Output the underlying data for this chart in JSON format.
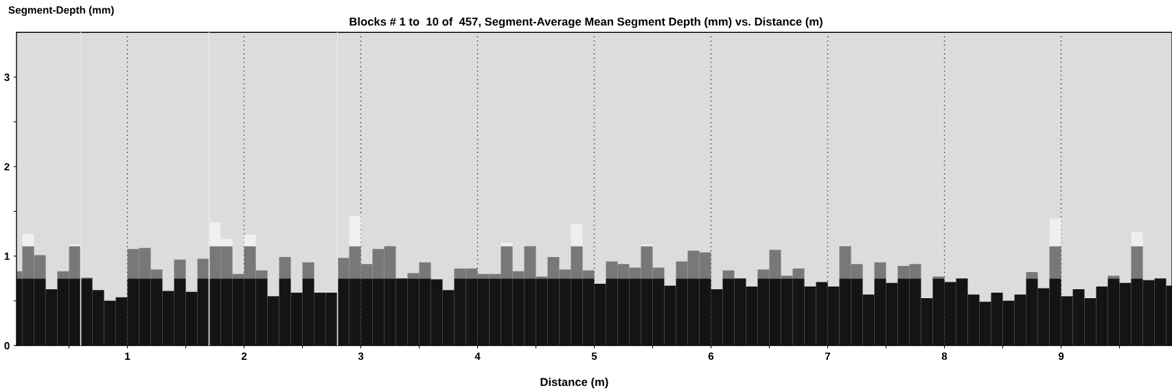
{
  "chart_data": {
    "type": "bar",
    "stacked": true,
    "title": "Blocks # 1 to  10 of  457, Segment-Average Mean Segment Depth (mm) vs. Distance (m)",
    "xlabel": "Distance (m)",
    "ylabel": "Segment-Depth (mm)",
    "x": [
      0.05,
      0.15,
      0.25,
      0.35,
      0.45,
      0.55,
      0.65,
      0.75,
      0.85,
      0.95,
      1.05,
      1.15,
      1.25,
      1.35,
      1.45,
      1.55,
      1.65,
      1.75,
      1.85,
      1.95,
      2.05,
      2.15,
      2.25,
      2.35,
      2.45,
      2.55,
      2.65,
      2.75,
      2.85,
      2.95,
      3.05,
      3.15,
      3.25,
      3.35,
      3.45,
      3.55,
      3.65,
      3.75,
      3.85,
      3.95,
      4.05,
      4.15,
      4.25,
      4.35,
      4.45,
      4.55,
      4.65,
      4.75,
      4.85,
      4.95,
      5.05,
      5.15,
      5.25,
      5.35,
      5.45,
      5.55,
      5.65,
      5.75,
      5.85,
      5.95,
      6.05,
      6.15,
      6.25,
      6.35,
      6.45,
      6.55,
      6.65,
      6.75,
      6.85,
      6.95,
      7.05,
      7.15,
      7.25,
      7.35,
      7.45,
      7.55,
      7.65,
      7.75,
      7.85,
      7.95,
      8.05,
      8.15,
      8.25,
      8.35,
      8.45,
      8.55,
      8.65,
      8.75,
      8.85,
      8.95,
      9.05,
      9.15,
      9.25,
      9.35,
      9.45,
      9.55,
      9.65,
      9.75,
      9.85,
      9.95
    ],
    "series": [
      {
        "color": "#141414",
        "values": [
          0.75,
          0.75,
          0.75,
          0.63,
          0.75,
          0.75,
          0.75,
          0.62,
          0.5,
          0.54,
          0.75,
          0.75,
          0.75,
          0.61,
          0.75,
          0.6,
          0.75,
          0.75,
          0.75,
          0.75,
          0.75,
          0.75,
          0.55,
          0.75,
          0.59,
          0.75,
          0.59,
          0.59,
          0.75,
          0.75,
          0.75,
          0.75,
          0.75,
          0.75,
          0.75,
          0.75,
          0.74,
          0.62,
          0.75,
          0.75,
          0.75,
          0.75,
          0.75,
          0.75,
          0.75,
          0.75,
          0.75,
          0.75,
          0.75,
          0.75,
          0.69,
          0.75,
          0.75,
          0.75,
          0.75,
          0.75,
          0.67,
          0.75,
          0.75,
          0.75,
          0.63,
          0.75,
          0.75,
          0.66,
          0.75,
          0.75,
          0.75,
          0.75,
          0.66,
          0.71,
          0.66,
          0.75,
          0.75,
          0.57,
          0.75,
          0.7,
          0.75,
          0.75,
          0.53,
          0.75,
          0.71,
          0.75,
          0.57,
          0.49,
          0.59,
          0.5,
          0.57,
          0.75,
          0.64,
          0.75,
          0.55,
          0.63,
          0.53,
          0.66,
          0.75,
          0.7,
          0.75,
          0.73,
          0.75,
          0.67
        ]
      },
      {
        "color": "#787878",
        "values": [
          0.08,
          0.36,
          0.26,
          0,
          0.08,
          0.36,
          0.01,
          0,
          0,
          0,
          0.33,
          0.34,
          0.1,
          0,
          0.21,
          0,
          0.22,
          0.36,
          0.36,
          0.05,
          0.36,
          0.09,
          0,
          0.24,
          0,
          0.18,
          0,
          0,
          0.23,
          0.36,
          0.16,
          0.33,
          0.36,
          0,
          0.06,
          0.18,
          0,
          0,
          0.11,
          0.11,
          0.05,
          0.05,
          0.36,
          0.08,
          0.36,
          0.02,
          0.24,
          0.1,
          0.36,
          0.09,
          0,
          0.19,
          0.16,
          0.12,
          0.36,
          0.12,
          0,
          0.19,
          0.31,
          0.29,
          0,
          0.09,
          0,
          0,
          0.1,
          0.32,
          0.03,
          0.11,
          0,
          0,
          0,
          0.36,
          0.16,
          0,
          0.18,
          0,
          0.14,
          0.16,
          0,
          0.02,
          0,
          0,
          0,
          0,
          0,
          0,
          0,
          0.07,
          0,
          0.36,
          0,
          0,
          0,
          0,
          0.03,
          0,
          0.36,
          0,
          0,
          0
        ]
      },
      {
        "color": "#efefef",
        "values": [
          0,
          0.14,
          0,
          0,
          0,
          0.02,
          0,
          0,
          0,
          0,
          0,
          0,
          0,
          0,
          0,
          0,
          0,
          0.27,
          0.08,
          0,
          0.13,
          0,
          0,
          0,
          0,
          0,
          0,
          0,
          0,
          0.34,
          0,
          0,
          0,
          0,
          0,
          0,
          0,
          0,
          0,
          0,
          0,
          0,
          0.04,
          0,
          0,
          0,
          0,
          0,
          0.25,
          0,
          0,
          0,
          0,
          0,
          0.02,
          0,
          0,
          0,
          0,
          0,
          0,
          0,
          0,
          0,
          0,
          0,
          0,
          0,
          0,
          0,
          0,
          0,
          0,
          0,
          0,
          0,
          0,
          0,
          0,
          0,
          0,
          0,
          0,
          0,
          0,
          0,
          0,
          0,
          0,
          0.31,
          0,
          0,
          0,
          0,
          0,
          0,
          0.16,
          0,
          0,
          0
        ]
      }
    ],
    "xlim": [
      0.05,
      9.95
    ],
    "ylim": [
      0,
      3.5
    ],
    "xticks": [
      {
        "value": 0.5,
        "label": null
      },
      1,
      {
        "value": 1.5,
        "label": null
      },
      2,
      {
        "value": 2.5,
        "label": null
      },
      3,
      {
        "value": 3.5,
        "label": null
      },
      4,
      {
        "value": 4.5,
        "label": null
      },
      5,
      {
        "value": 5.5,
        "label": null
      },
      6,
      {
        "value": 6.5,
        "label": null
      },
      7,
      {
        "value": 7.5,
        "label": null
      },
      8,
      {
        "value": 8.5,
        "label": null
      },
      9,
      {
        "value": 9.5,
        "label": null
      }
    ],
    "yticks": [
      0,
      {
        "value": 0.5,
        "label": null
      },
      1,
      {
        "value": 1.5,
        "label": null
      },
      2,
      {
        "value": 2.5,
        "label": null
      },
      3
    ],
    "grid": "x",
    "ref_lines": [
      {
        "axis": "x",
        "value": 0.6,
        "color": "#e8e8e8"
      },
      {
        "axis": "x",
        "value": 1.7,
        "color": "#e8e8e8"
      },
      {
        "axis": "x",
        "value": 2.8,
        "color": "#e8e8e8"
      }
    ]
  }
}
